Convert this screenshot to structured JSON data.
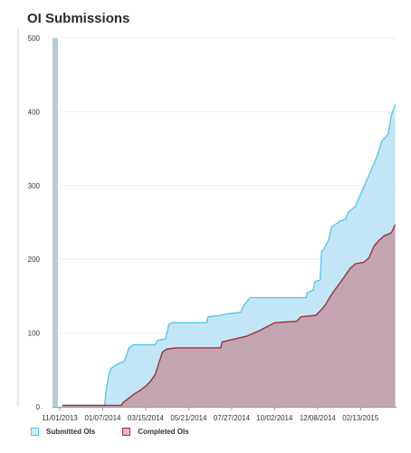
{
  "colors": {
    "submitted_fill": "#c3e6f7",
    "submitted_line": "#49c6ef",
    "completed_fill": "#c2a5b0",
    "completed_line": "#a0303a",
    "legend_submitted_fill": "#cfeefb",
    "legend_submitted_border": "#49c6ef",
    "legend_completed_fill": "#e4b8b8",
    "legend_completed_border": "#a0303a",
    "left_bar": "#b8cad6",
    "grid": "#eeeeee",
    "axis": "#999999"
  },
  "chart_data": {
    "type": "area",
    "title": "OI Submissions",
    "xlabel": "",
    "ylabel": "",
    "ylim": [
      0,
      500
    ],
    "yticks": [
      0,
      100,
      200,
      300,
      400,
      500
    ],
    "ytick_labels": [
      "0",
      "100",
      "200",
      "300",
      "400",
      "500"
    ],
    "xlim": [
      "2013-11-01",
      "2015-04-10"
    ],
    "xticks": [
      "2013-11-01",
      "2014-01-07",
      "2014-03-15",
      "2014-05-21",
      "2014-07-27",
      "2014-10-02",
      "2014-12-08",
      "2015-02-13"
    ],
    "xtick_labels": [
      "11/01/2013",
      "01/07/2014",
      "03/15/2014",
      "05/21/2014",
      "07/27/2014",
      "10/02/2014",
      "12/08/2014",
      "02/13/2015"
    ],
    "grid": true,
    "legend": "bottom-left",
    "series": [
      {
        "name": "Submitted OIs",
        "points": [
          [
            "2013-11-05",
            2
          ],
          [
            "2014-01-10",
            2
          ],
          [
            "2014-01-12",
            20
          ],
          [
            "2014-01-16",
            42
          ],
          [
            "2014-01-20",
            52
          ],
          [
            "2014-01-30",
            58
          ],
          [
            "2014-02-10",
            62
          ],
          [
            "2014-02-17",
            80
          ],
          [
            "2014-02-23",
            84
          ],
          [
            "2014-03-30",
            84
          ],
          [
            "2014-04-02",
            90
          ],
          [
            "2014-04-15",
            92
          ],
          [
            "2014-04-20",
            112
          ],
          [
            "2014-04-25",
            114
          ],
          [
            "2014-06-18",
            114
          ],
          [
            "2014-06-20",
            122
          ],
          [
            "2014-07-10",
            124
          ],
          [
            "2014-07-20",
            126
          ],
          [
            "2014-08-10",
            128
          ],
          [
            "2014-08-15",
            138
          ],
          [
            "2014-08-25",
            148
          ],
          [
            "2014-11-20",
            148
          ],
          [
            "2014-11-22",
            155
          ],
          [
            "2014-12-01",
            158
          ],
          [
            "2014-12-04",
            170
          ],
          [
            "2014-12-12",
            172
          ],
          [
            "2014-12-14",
            210
          ],
          [
            "2014-12-18",
            214
          ],
          [
            "2014-12-25",
            226
          ],
          [
            "2014-12-30",
            244
          ],
          [
            "2015-01-06",
            248
          ],
          [
            "2015-01-12",
            252
          ],
          [
            "2015-01-20",
            254
          ],
          [
            "2015-01-25",
            264
          ],
          [
            "2015-02-05",
            272
          ],
          [
            "2015-02-14",
            290
          ],
          [
            "2015-02-20",
            302
          ],
          [
            "2015-02-28",
            318
          ],
          [
            "2015-03-10",
            338
          ],
          [
            "2015-03-18",
            360
          ],
          [
            "2015-03-28",
            370
          ],
          [
            "2015-04-02",
            395
          ],
          [
            "2015-04-08",
            410
          ]
        ]
      },
      {
        "name": "Completed OIs",
        "points": [
          [
            "2013-11-05",
            2
          ],
          [
            "2014-02-05",
            2
          ],
          [
            "2014-02-08",
            6
          ],
          [
            "2014-02-14",
            10
          ],
          [
            "2014-02-20",
            14
          ],
          [
            "2014-02-26",
            18
          ],
          [
            "2014-03-06",
            22
          ],
          [
            "2014-03-15",
            28
          ],
          [
            "2014-03-22",
            34
          ],
          [
            "2014-03-30",
            44
          ],
          [
            "2014-04-04",
            58
          ],
          [
            "2014-04-10",
            74
          ],
          [
            "2014-04-16",
            78
          ],
          [
            "2014-05-01",
            80
          ],
          [
            "2014-07-10",
            80
          ],
          [
            "2014-07-12",
            88
          ],
          [
            "2014-08-01",
            92
          ],
          [
            "2014-08-20",
            96
          ],
          [
            "2014-09-10",
            104
          ],
          [
            "2014-10-02",
            114
          ],
          [
            "2014-11-05",
            116
          ],
          [
            "2014-11-12",
            122
          ],
          [
            "2014-12-05",
            124
          ],
          [
            "2014-12-12",
            130
          ],
          [
            "2014-12-20",
            138
          ],
          [
            "2014-12-28",
            150
          ],
          [
            "2015-01-05",
            160
          ],
          [
            "2015-01-12",
            168
          ],
          [
            "2015-01-20",
            178
          ],
          [
            "2015-01-28",
            188
          ],
          [
            "2015-02-05",
            194
          ],
          [
            "2015-02-18",
            196
          ],
          [
            "2015-02-26",
            202
          ],
          [
            "2015-03-06",
            218
          ],
          [
            "2015-03-14",
            226
          ],
          [
            "2015-03-22",
            232
          ],
          [
            "2015-04-02",
            236
          ],
          [
            "2015-04-08",
            247
          ]
        ]
      }
    ]
  }
}
